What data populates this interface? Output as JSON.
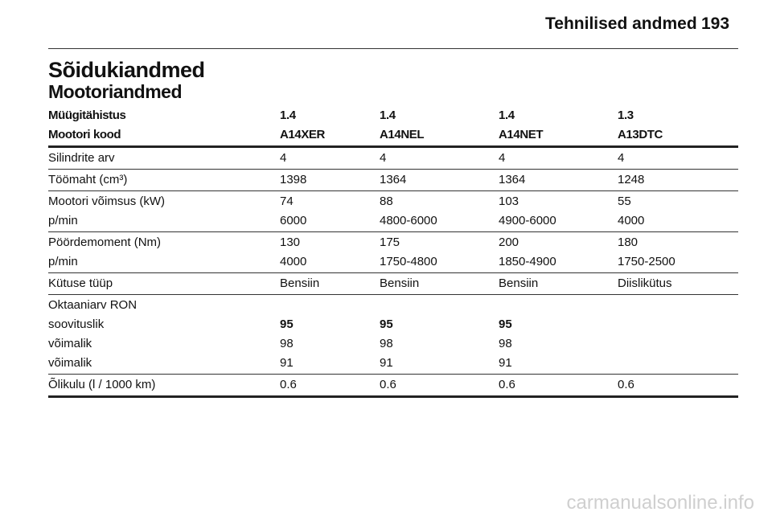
{
  "header": {
    "title": "Tehnilised andmed",
    "page": "193"
  },
  "title": "Sõidukiandmed",
  "subtitle": "Mootoriandmed",
  "table": {
    "head": [
      [
        "Müügitähistus",
        "1.4",
        "1.4",
        "1.4",
        "1.3"
      ],
      [
        "Mootori kood",
        "A14XER",
        "A14NEL",
        "A14NET",
        "A13DTC"
      ]
    ],
    "groups": [
      [
        {
          "cells": [
            "Silindrite arv",
            "4",
            "4",
            "4",
            "4"
          ]
        }
      ],
      [
        {
          "cells": [
            "Töömaht (cm³)",
            "1398",
            "1364",
            "1364",
            "1248"
          ]
        }
      ],
      [
        {
          "cells": [
            "Mootori võimsus (kW)",
            "74",
            "88",
            "103",
            "55"
          ]
        },
        {
          "cells": [
            "p/min",
            "6000",
            "4800-6000",
            "4900-6000",
            "4000"
          ]
        }
      ],
      [
        {
          "cells": [
            "Pöördemoment (Nm)",
            "130",
            "175",
            "200",
            "180"
          ]
        },
        {
          "cells": [
            "p/min",
            "4000",
            "1750-4800",
            "1850-4900",
            "1750-2500"
          ]
        }
      ],
      [
        {
          "cells": [
            "Kütuse tüüp",
            "Bensiin",
            "Bensiin",
            "Bensiin",
            "Diislikütus"
          ]
        }
      ],
      [
        {
          "cells": [
            "Oktaaniarv RON"
          ]
        },
        {
          "cells": [
            "soovituslik",
            "95",
            "95",
            "95"
          ],
          "bold": true
        },
        {
          "cells": [
            "võimalik",
            "98",
            "98",
            "98"
          ]
        },
        {
          "cells": [
            "võimalik",
            "91",
            "91",
            "91"
          ]
        }
      ],
      [
        {
          "cells": [
            "Õlikulu (l / 1000 km)",
            "0.6",
            "0.6",
            "0.6",
            "0.6"
          ]
        }
      ]
    ]
  },
  "watermark": "carmanualsonline.info"
}
